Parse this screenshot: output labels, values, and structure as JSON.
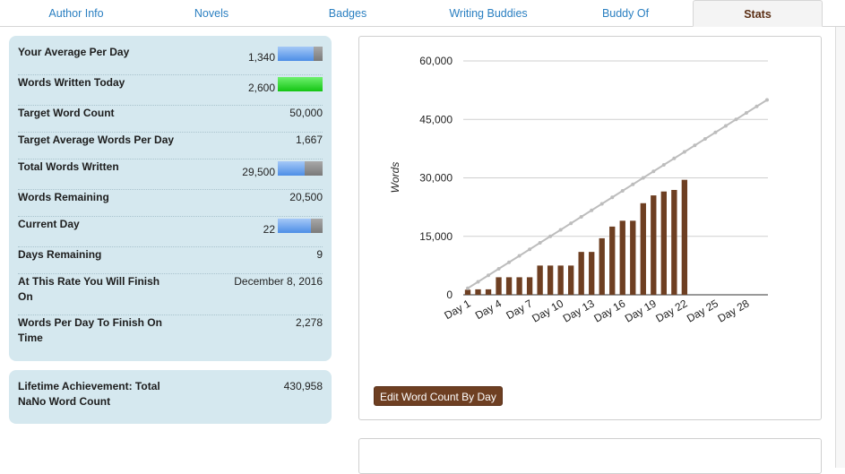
{
  "tabs": [
    {
      "label": "Author Info",
      "active": false
    },
    {
      "label": "Novels",
      "active": false
    },
    {
      "label": "Badges",
      "active": false
    },
    {
      "label": "Writing Buddies",
      "active": false
    },
    {
      "label": "Buddy Of",
      "active": false
    },
    {
      "label": "Stats",
      "active": true
    }
  ],
  "stats": {
    "rows": [
      {
        "label": "Your Average Per Day",
        "value": "1,340",
        "bar": {
          "color": "blue",
          "fraction": 0.8
        }
      },
      {
        "label": "Words Written Today",
        "value": "2,600",
        "bar": {
          "color": "green",
          "fraction": 1.0
        }
      },
      {
        "label": "Target Word Count",
        "value": "50,000"
      },
      {
        "label": "Target Average Words Per Day",
        "value": "1,667"
      },
      {
        "label": "Total Words Written",
        "value": "29,500",
        "bar": {
          "color": "blue",
          "fraction": 0.59
        }
      },
      {
        "label": "Words Remaining",
        "value": "20,500"
      },
      {
        "label": "Current Day",
        "value": "22",
        "bar": {
          "color": "blue",
          "fraction": 0.73
        }
      },
      {
        "label": "Days Remaining",
        "value": "9"
      },
      {
        "label": "At This Rate You Will Finish On",
        "value": "December 8, 2016"
      },
      {
        "label": "Words Per Day To Finish On Time",
        "value": "2,278"
      }
    ]
  },
  "lifetime": {
    "label": "Lifetime Achievement: Total NaNo Word Count",
    "value": "430,958"
  },
  "colors": {
    "tab_link": "#2a7fc1",
    "active_tab": "#5a2e14",
    "panel_bg": "#d5e8ef",
    "bar_fill": "#6e3f22",
    "target_line": "#bdbdbd",
    "button_bg": "#6e3f22"
  },
  "chart_data": {
    "type": "bar",
    "ylabel": "Words",
    "xlabel": "",
    "ylim": [
      0,
      60000
    ],
    "yticks": [
      "0",
      "15,000",
      "30,000",
      "45,000",
      "60,000"
    ],
    "ytick_values": [
      0,
      15000,
      30000,
      45000,
      60000
    ],
    "grid": true,
    "x_tick_labels": [
      "Day 1",
      "Day 4",
      "Day 7",
      "Day 10",
      "Day 13",
      "Day 16",
      "Day 19",
      "Day 22",
      "Day 25",
      "Day 28"
    ],
    "days": 30,
    "series": [
      {
        "type": "bar",
        "values": [
          1300,
          1400,
          1400,
          4500,
          4500,
          4500,
          4500,
          7500,
          7500,
          7500,
          7500,
          11000,
          11000,
          14500,
          17500,
          19000,
          19000,
          23500,
          25500,
          26500,
          26900,
          29500
        ]
      },
      {
        "type": "line",
        "from": 1667,
        "to": 50000
      }
    ]
  },
  "actions": {
    "edit_button": "Edit Word Count By Day"
  }
}
